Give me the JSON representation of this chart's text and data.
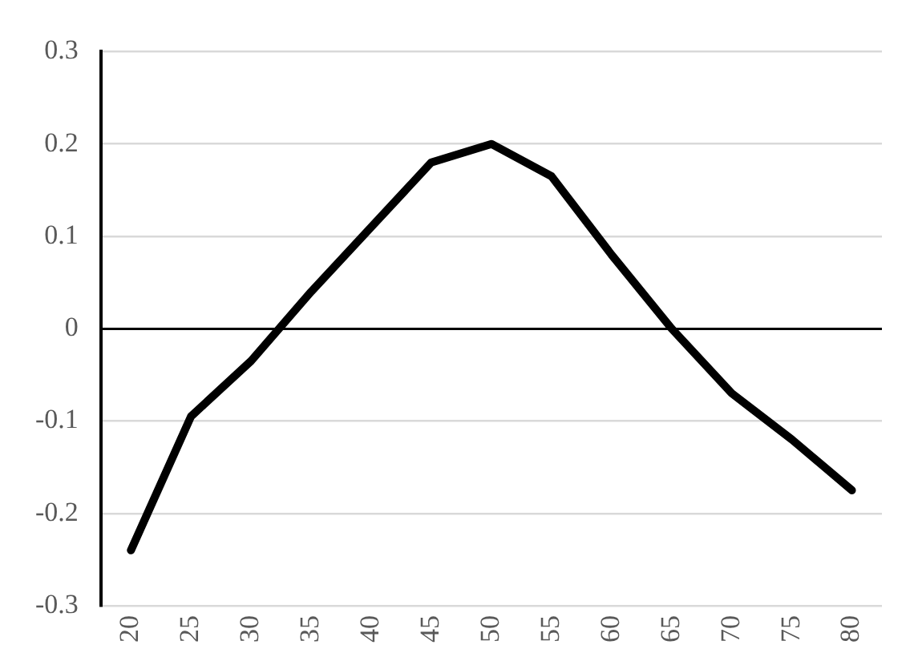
{
  "chart_data": {
    "type": "line",
    "categories": [
      "20",
      "25",
      "30",
      "35",
      "40",
      "45",
      "50",
      "55",
      "60",
      "65",
      "70",
      "75",
      "80"
    ],
    "series": [
      {
        "color": "#000000",
        "values": [
          -0.24,
          -0.095,
          -0.035,
          0.04,
          0.11,
          0.18,
          0.2,
          0.165,
          0.08,
          0,
          -0.07,
          -0.12,
          -0.175
        ]
      }
    ],
    "ylim": [
      -0.3,
      0.3
    ],
    "yticks": [
      -0.3,
      -0.2,
      -0.1,
      0,
      0.1,
      0.2,
      0.3
    ],
    "grid": "y",
    "legend": false,
    "marker": "none",
    "line_style": "solid"
  }
}
